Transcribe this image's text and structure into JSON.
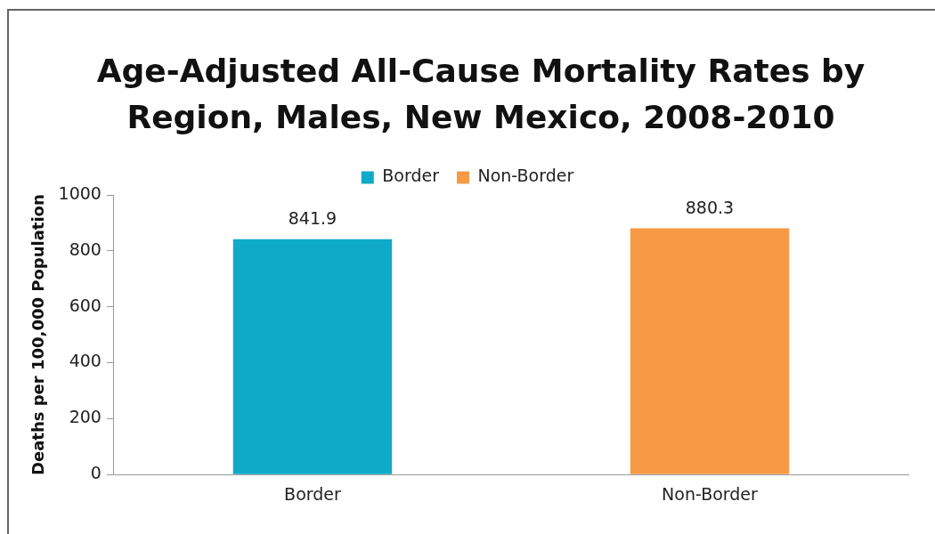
{
  "chart_data": {
    "type": "bar",
    "title": "Age-Adjusted All-Cause Mortality Rates by Region, Males, New Mexico, 2008-2010",
    "ylabel": "Deaths per 100,000 Population",
    "categories": [
      "Border",
      "Non-Border"
    ],
    "series": [
      {
        "name": "Border",
        "color": "#0eaac8",
        "values": [
          841.9,
          null
        ]
      },
      {
        "name": "Non-Border",
        "color": "#f79a46",
        "values": [
          null,
          880.3
        ]
      }
    ],
    "ylim": [
      0,
      1000
    ],
    "yticks": [
      0,
      200,
      400,
      600,
      800,
      1000
    ],
    "data_labels": true,
    "legend": "top"
  }
}
